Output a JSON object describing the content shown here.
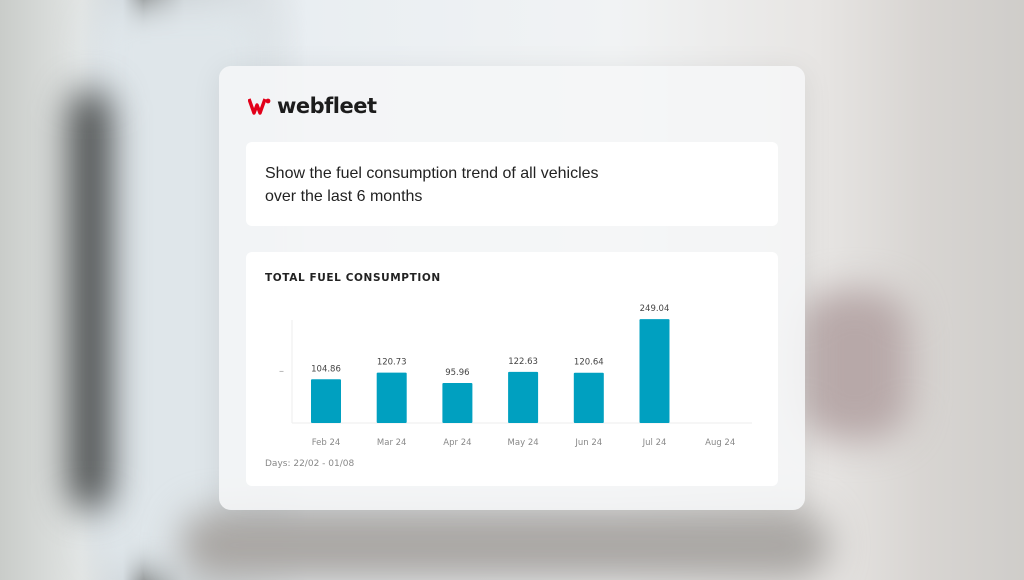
{
  "brand": {
    "name": "webfleet",
    "accent": "#e2001a"
  },
  "prompt": {
    "line1": "Show the fuel consumption trend of all vehicles",
    "line2": "over the last 6 months"
  },
  "chart_data": {
    "type": "bar",
    "title": "TOTAL FUEL CONSUMPTION",
    "categories": [
      "Feb 24",
      "Mar 24",
      "Apr 24",
      "May 24",
      "Jun 24",
      "Jul 24",
      "Aug 24"
    ],
    "values": [
      104.86,
      120.73,
      95.96,
      122.63,
      120.64,
      249.04,
      null
    ],
    "data_labels": [
      "104.86",
      "120.73",
      "95.96",
      "122.63",
      "120.64",
      "249.04",
      ""
    ],
    "ylim": [
      0,
      295
    ],
    "y_tick_label": "–",
    "bar_color": "#00a0c0",
    "footnote": "Days: 22/02 - 01/08",
    "grid": false
  }
}
